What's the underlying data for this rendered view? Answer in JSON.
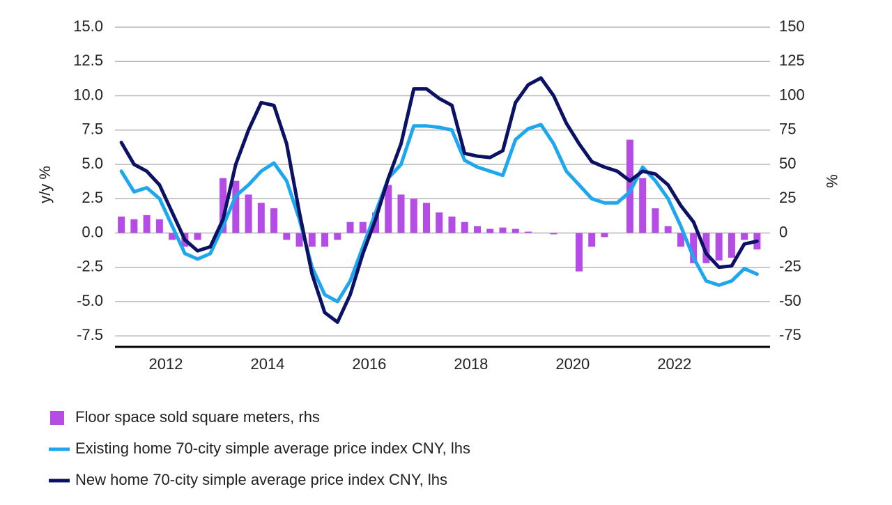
{
  "chart_data": {
    "type": "line",
    "y_label": "y/y %",
    "y2_label": "%",
    "x": [
      2011.125,
      2011.375,
      2011.625,
      2011.875,
      2012.125,
      2012.375,
      2012.625,
      2012.875,
      2013.125,
      2013.375,
      2013.625,
      2013.875,
      2014.125,
      2014.375,
      2014.625,
      2014.875,
      2015.125,
      2015.375,
      2015.625,
      2015.875,
      2016.125,
      2016.375,
      2016.625,
      2016.875,
      2017.125,
      2017.375,
      2017.625,
      2017.875,
      2018.125,
      2018.375,
      2018.625,
      2018.875,
      2019.125,
      2019.375,
      2019.625,
      2019.875,
      2020.125,
      2020.375,
      2020.625,
      2020.875,
      2021.125,
      2021.375,
      2021.625,
      2021.875,
      2022.125,
      2022.375,
      2022.625,
      2022.875,
      2023.125,
      2023.375,
      2023.625
    ],
    "xlim": [
      2011,
      2023.88
    ],
    "xticks": [
      2012,
      2014,
      2016,
      2018,
      2020,
      2022
    ],
    "ylim": [
      -8.3,
      15
    ],
    "yticks": [
      {
        "value": 15,
        "label": "15.0"
      },
      12.5,
      {
        "value": 10,
        "label": "10.0"
      },
      7.5,
      {
        "value": 5,
        "label": "5.0"
      },
      2.5,
      {
        "value": 0,
        "label": "0.0"
      },
      -2.5,
      {
        "value": -5,
        "label": "-5.0"
      },
      -7.5
    ],
    "y2lim": [
      -83,
      150
    ],
    "y2ticks": [
      150,
      125,
      100,
      75,
      50,
      25,
      0,
      -25,
      -50,
      -75
    ],
    "grid": true,
    "series": [
      {
        "name": "Floor space sold square meters, rhs",
        "type": "bar",
        "axis": "y2",
        "color": "#b64ce6",
        "values": [
          12,
          10,
          13,
          10,
          -5,
          -10,
          -5,
          0,
          40,
          38,
          28,
          22,
          18,
          -5,
          -10,
          -10,
          -10,
          -5,
          8,
          8,
          15,
          35,
          28,
          25,
          22,
          15,
          12,
          8,
          5,
          3,
          4,
          3,
          1,
          0,
          -1,
          0,
          -28,
          -10,
          -3,
          0,
          68,
          40,
          18,
          5,
          -10,
          -22,
          -22,
          -20,
          -18,
          -5,
          -12
        ]
      },
      {
        "name": "Existing home 70-city simple average price index CNY, lhs",
        "type": "line",
        "color": "#1ea7ef",
        "values": [
          4.5,
          3.0,
          3.3,
          2.5,
          0.5,
          -1.5,
          -1.9,
          -1.5,
          0.5,
          2.7,
          3.5,
          4.5,
          5.1,
          3.8,
          1.0,
          -2.5,
          -4.5,
          -5.0,
          -3.5,
          -1.0,
          1.5,
          4.0,
          5.0,
          7.8,
          7.8,
          7.7,
          7.5,
          5.3,
          4.8,
          4.5,
          4.2,
          6.8,
          7.6,
          7.9,
          6.5,
          4.5,
          3.5,
          2.5,
          2.2,
          2.2,
          3.0,
          4.8,
          3.8,
          2.5,
          0.5,
          -1.8,
          -3.5,
          -3.8,
          -3.5,
          -2.6,
          -3.0
        ]
      },
      {
        "name": "New home 70-city simple average price index CNY, lhs",
        "type": "line",
        "color": "#0b1263",
        "values": [
          6.6,
          5.0,
          4.5,
          3.5,
          1.5,
          -0.5,
          -1.3,
          -1.0,
          1.0,
          5.0,
          7.5,
          9.5,
          9.3,
          6.5,
          1.5,
          -3.0,
          -5.8,
          -6.5,
          -4.5,
          -1.5,
          1.0,
          4.0,
          6.5,
          10.5,
          10.5,
          9.8,
          9.3,
          5.8,
          5.6,
          5.5,
          6.0,
          9.5,
          10.8,
          11.3,
          10.0,
          8.0,
          6.5,
          5.2,
          4.8,
          4.5,
          3.8,
          4.5,
          4.3,
          3.5,
          2.0,
          0.8,
          -1.5,
          -2.5,
          -2.4,
          -0.8,
          -0.6
        ]
      }
    ]
  }
}
